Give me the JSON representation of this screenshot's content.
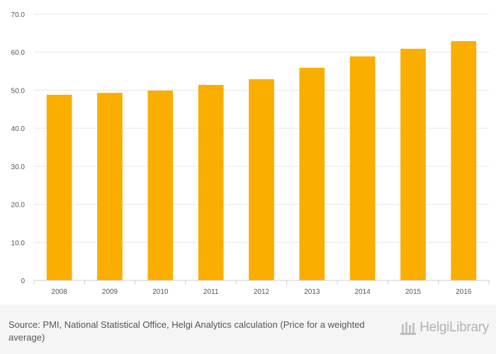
{
  "chart_data": {
    "type": "bar",
    "categories": [
      "2008",
      "2009",
      "2010",
      "2011",
      "2012",
      "2013",
      "2014",
      "2015",
      "2016"
    ],
    "values": [
      48.8,
      49.3,
      49.9,
      51.4,
      52.9,
      55.9,
      58.9,
      60.9,
      62.9
    ],
    "title": "",
    "xlabel": "",
    "ylabel": "",
    "ylim": [
      0,
      70
    ],
    "yticks": [
      "0",
      "10.0",
      "20.0",
      "30.0",
      "40.0",
      "50.0",
      "60.0",
      "70.0"
    ],
    "ytick_values": [
      0,
      10,
      20,
      30,
      40,
      50,
      60,
      70
    ],
    "grid": true,
    "bar_color": "#f9ae00"
  },
  "footer": {
    "source": "Source: PMI, National Statistical Office, Helgi Analytics calculation (Price for a weighted average)",
    "logo_text": "HelgiLibrary"
  },
  "colors": {
    "background": "#ffffff",
    "footer_bg": "#f5f5f5",
    "gridline": "#e6e6e6",
    "tick_text": "#555555"
  }
}
